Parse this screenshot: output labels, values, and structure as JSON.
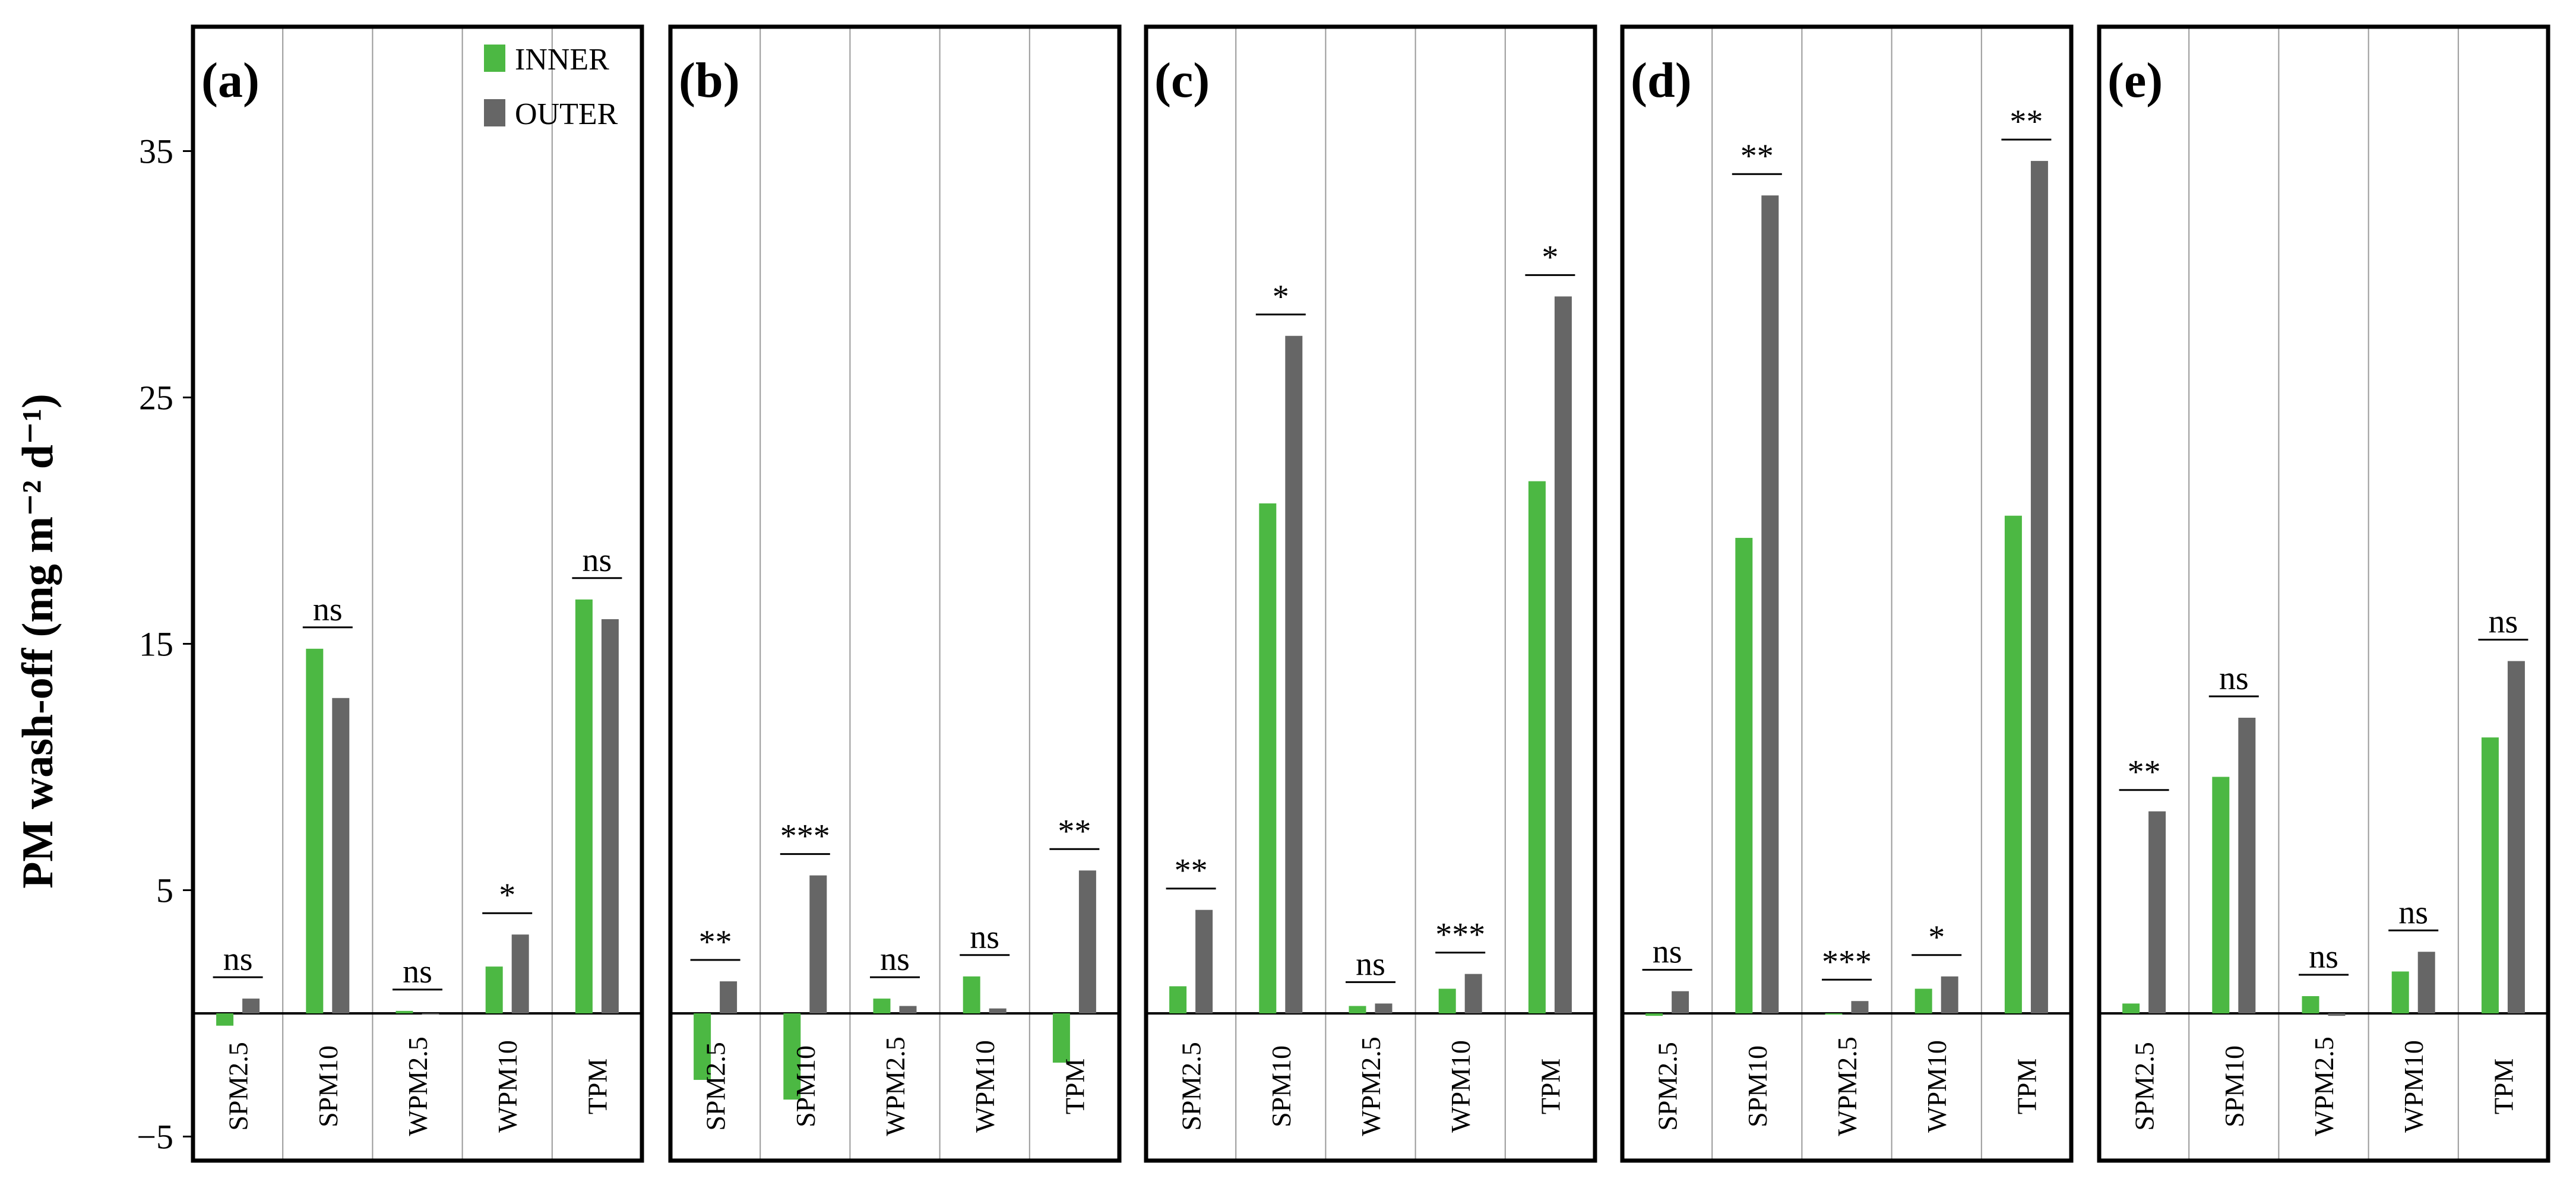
{
  "chart_data": {
    "type": "bar",
    "ylabel": "PM wash-off (mg m⁻² d⁻¹)",
    "ylim": [
      -5,
      40
    ],
    "yticks": [
      -5,
      5,
      15,
      25,
      35
    ],
    "ytick_labels": [
      "−5",
      "5",
      "15",
      "25",
      "35"
    ],
    "legend": {
      "position": "top-right of panel (a)",
      "entries": [
        "INNER",
        "OUTER"
      ]
    },
    "series_colors": {
      "INNER": "#4cb843",
      "OUTER": "#666666"
    },
    "categories": [
      "SPM2.5",
      "SPM10",
      "WPM2.5",
      "WPM10",
      "TPM"
    ],
    "panels": [
      {
        "label": "(a)",
        "series": [
          {
            "name": "INNER",
            "values": [
              -0.5,
              14.8,
              0.1,
              1.9,
              16.8
            ]
          },
          {
            "name": "OUTER",
            "values": [
              0.6,
              12.8,
              0.0,
              3.2,
              16.0
            ]
          }
        ],
        "significance": [
          "ns",
          "ns",
          "ns",
          "*",
          "ns"
        ]
      },
      {
        "label": "(b)",
        "series": [
          {
            "name": "INNER",
            "values": [
              -2.7,
              -3.5,
              0.6,
              1.5,
              -2.0
            ]
          },
          {
            "name": "OUTER",
            "values": [
              1.3,
              5.6,
              0.3,
              0.2,
              5.8
            ]
          }
        ],
        "significance": [
          "**",
          "***",
          "ns",
          "ns",
          "**"
        ]
      },
      {
        "label": "(c)",
        "series": [
          {
            "name": "INNER",
            "values": [
              1.1,
              20.7,
              0.3,
              1.0,
              21.6
            ]
          },
          {
            "name": "OUTER",
            "values": [
              4.2,
              27.5,
              0.4,
              1.6,
              29.1
            ]
          }
        ],
        "significance": [
          "**",
          "*",
          "ns",
          "***",
          "*"
        ]
      },
      {
        "label": "(d)",
        "series": [
          {
            "name": "INNER",
            "values": [
              -0.1,
              19.3,
              0.0,
              1.0,
              20.2
            ]
          },
          {
            "name": "OUTER",
            "values": [
              0.9,
              33.2,
              0.5,
              1.5,
              34.6
            ]
          }
        ],
        "significance": [
          "ns",
          "**",
          "***",
          "*",
          "**"
        ]
      },
      {
        "label": "(e)",
        "series": [
          {
            "name": "INNER",
            "values": [
              0.4,
              9.6,
              0.7,
              1.7,
              11.2
            ]
          },
          {
            "name": "OUTER",
            "values": [
              8.2,
              12.0,
              -0.1,
              2.5,
              14.3
            ]
          }
        ],
        "significance": [
          "**",
          "ns",
          "ns",
          "ns",
          "ns"
        ]
      }
    ]
  }
}
